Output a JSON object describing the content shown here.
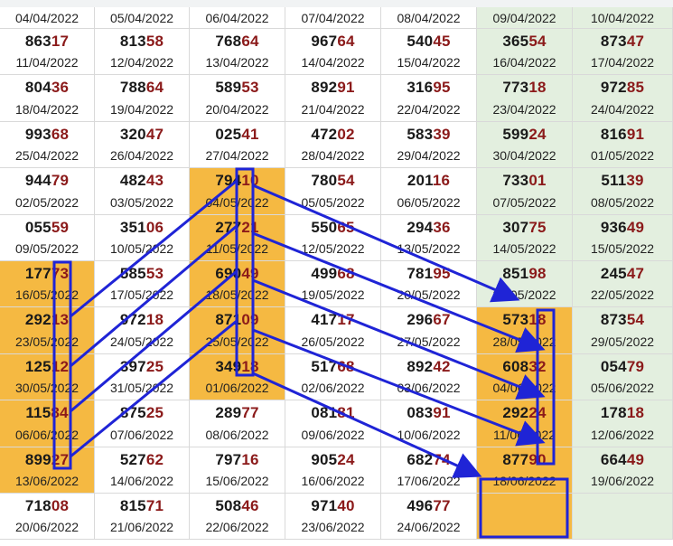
{
  "colors": {
    "highlight": "#f5b942",
    "weekend": "#e3efdf",
    "digits_hi": "#8b1a1a",
    "annotation": "#1f24d6"
  },
  "header_dates": [
    "04/04/2022",
    "05/04/2022",
    "06/04/2022",
    "07/04/2022",
    "08/04/2022",
    "09/04/2022",
    "10/04/2022"
  ],
  "rows": [
    [
      {
        "num": "863",
        "hi": "17",
        "date": "11/04/2022"
      },
      {
        "num": "813",
        "hi": "58",
        "date": "12/04/2022"
      },
      {
        "num": "768",
        "hi": "64",
        "date": "13/04/2022"
      },
      {
        "num": "967",
        "hi": "64",
        "date": "14/04/2022"
      },
      {
        "num": "540",
        "hi": "45",
        "date": "15/04/2022"
      },
      {
        "num": "365",
        "hi": "54",
        "date": "16/04/2022"
      },
      {
        "num": "873",
        "hi": "47",
        "date": "17/04/2022"
      }
    ],
    [
      {
        "num": "804",
        "hi": "36",
        "date": "18/04/2022"
      },
      {
        "num": "788",
        "hi": "64",
        "date": "19/04/2022"
      },
      {
        "num": "589",
        "hi": "53",
        "date": "20/04/2022"
      },
      {
        "num": "892",
        "hi": "91",
        "date": "21/04/2022"
      },
      {
        "num": "316",
        "hi": "95",
        "date": "22/04/2022"
      },
      {
        "num": "773",
        "hi": "18",
        "date": "23/04/2022"
      },
      {
        "num": "972",
        "hi": "85",
        "date": "24/04/2022"
      }
    ],
    [
      {
        "num": "993",
        "hi": "68",
        "date": "25/04/2022"
      },
      {
        "num": "320",
        "hi": "47",
        "date": "26/04/2022"
      },
      {
        "num": "025",
        "hi": "41",
        "date": "27/04/2022"
      },
      {
        "num": "472",
        "hi": "02",
        "date": "28/04/2022"
      },
      {
        "num": "583",
        "hi": "39",
        "date": "29/04/2022"
      },
      {
        "num": "599",
        "hi": "24",
        "date": "30/04/2022"
      },
      {
        "num": "816",
        "hi": "91",
        "date": "01/05/2022"
      }
    ],
    [
      {
        "num": "944",
        "hi": "79",
        "date": "02/05/2022"
      },
      {
        "num": "482",
        "hi": "43",
        "date": "03/05/2022"
      },
      {
        "num": "794",
        "hi": "10",
        "date": "04/05/2022"
      },
      {
        "num": "780",
        "hi": "54",
        "date": "05/05/2022"
      },
      {
        "num": "201",
        "hi": "16",
        "date": "06/05/2022"
      },
      {
        "num": "733",
        "hi": "01",
        "date": "07/05/2022"
      },
      {
        "num": "511",
        "hi": "39",
        "date": "08/05/2022"
      }
    ],
    [
      {
        "num": "055",
        "hi": "59",
        "date": "09/05/2022"
      },
      {
        "num": "351",
        "hi": "06",
        "date": "10/05/2022"
      },
      {
        "num": "277",
        "hi": "21",
        "date": "11/05/2022"
      },
      {
        "num": "550",
        "hi": "65",
        "date": "12/05/2022"
      },
      {
        "num": "294",
        "hi": "36",
        "date": "13/05/2022"
      },
      {
        "num": "307",
        "hi": "75",
        "date": "14/05/2022"
      },
      {
        "num": "936",
        "hi": "49",
        "date": "15/05/2022"
      }
    ],
    [
      {
        "num": "177",
        "hi": "73",
        "date": "16/05/2022"
      },
      {
        "num": "585",
        "hi": "53",
        "date": "17/05/2022"
      },
      {
        "num": "690",
        "hi": "49",
        "date": "18/05/2022"
      },
      {
        "num": "499",
        "hi": "68",
        "date": "19/05/2022"
      },
      {
        "num": "781",
        "hi": "95",
        "date": "20/05/2022"
      },
      {
        "num": "851",
        "hi": "98",
        "date": "21/05/2022"
      },
      {
        "num": "245",
        "hi": "47",
        "date": "22/05/2022"
      }
    ],
    [
      {
        "num": "292",
        "hi": "13",
        "date": "23/05/2022"
      },
      {
        "num": "972",
        "hi": "18",
        "date": "24/05/2022"
      },
      {
        "num": "871",
        "hi": "09",
        "date": "25/05/2022"
      },
      {
        "num": "417",
        "hi": "17",
        "date": "26/05/2022"
      },
      {
        "num": "296",
        "hi": "67",
        "date": "27/05/2022"
      },
      {
        "num": "573",
        "hi": "18",
        "date": "28/05/2022"
      },
      {
        "num": "873",
        "hi": "54",
        "date": "29/05/2022"
      }
    ],
    [
      {
        "num": "125",
        "hi": "12",
        "date": "30/05/2022"
      },
      {
        "num": "397",
        "hi": "25",
        "date": "31/05/2022"
      },
      {
        "num": "349",
        "hi": "18",
        "date": "01/06/2022"
      },
      {
        "num": "517",
        "hi": "68",
        "date": "02/06/2022"
      },
      {
        "num": "892",
        "hi": "42",
        "date": "03/06/2022"
      },
      {
        "num": "608",
        "hi": "32",
        "date": "04/06/2022"
      },
      {
        "num": "054",
        "hi": "79",
        "date": "05/06/2022"
      }
    ],
    [
      {
        "num": "115",
        "hi": "84",
        "date": "06/06/2022"
      },
      {
        "num": "875",
        "hi": "25",
        "date": "07/06/2022"
      },
      {
        "num": "289",
        "hi": "77",
        "date": "08/06/2022"
      },
      {
        "num": "081",
        "hi": "81",
        "date": "09/06/2022"
      },
      {
        "num": "083",
        "hi": "91",
        "date": "10/06/2022"
      },
      {
        "num": "292",
        "hi": "24",
        "date": "11/06/2022"
      },
      {
        "num": "178",
        "hi": "18",
        "date": "12/06/2022"
      }
    ],
    [
      {
        "num": "899",
        "hi": "27",
        "date": "13/06/2022"
      },
      {
        "num": "527",
        "hi": "62",
        "date": "14/06/2022"
      },
      {
        "num": "797",
        "hi": "16",
        "date": "15/06/2022"
      },
      {
        "num": "905",
        "hi": "24",
        "date": "16/06/2022"
      },
      {
        "num": "682",
        "hi": "74",
        "date": "17/06/2022"
      },
      {
        "num": "877",
        "hi": "90",
        "date": "18/06/2022"
      },
      {
        "num": "664",
        "hi": "49",
        "date": "19/06/2022"
      }
    ],
    [
      {
        "num": "718",
        "hi": "08",
        "date": "20/06/2022"
      },
      {
        "num": "815",
        "hi": "71",
        "date": "21/06/2022"
      },
      {
        "num": "508",
        "hi": "46",
        "date": "22/06/2022"
      },
      {
        "num": "971",
        "hi": "40",
        "date": "23/06/2022"
      },
      {
        "num": "496",
        "hi": "77",
        "date": "24/06/2022"
      },
      {
        "num": "",
        "hi": "",
        "date": ""
      },
      {
        "num": "",
        "hi": "",
        "date": ""
      }
    ]
  ],
  "highlighted_cells": [
    [
      3,
      2
    ],
    [
      4,
      2
    ],
    [
      5,
      2
    ],
    [
      6,
      2
    ],
    [
      7,
      2
    ],
    [
      5,
      0
    ],
    [
      6,
      0
    ],
    [
      7,
      0
    ],
    [
      8,
      0
    ],
    [
      9,
      0
    ],
    [
      6,
      5
    ],
    [
      7,
      5
    ],
    [
      8,
      5
    ],
    [
      9,
      5
    ],
    [
      10,
      5
    ]
  ],
  "weekend_columns": [
    5,
    6
  ]
}
